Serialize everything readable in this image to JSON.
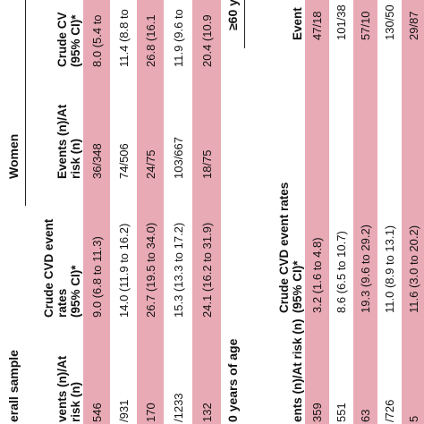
{
  "sections": [
    {
      "title": "erall sample",
      "group": "Women",
      "headers": [
        "vents (n)/At\nrisk (n)",
        "Crude CVD event\nrates\n(95% CI)*",
        "Events (n)/At\nrisk (n)",
        "Crude CV\n(95% CI)*"
      ],
      "rows": [
        [
          "546",
          "9.0 (6.8 to 11.3)",
          "36/348",
          "8.0 (5.4 to"
        ],
        [
          "/931",
          "14.0 (11.9 to 16.2)",
          "74/506",
          "11.4 (8.8 to"
        ],
        [
          "170",
          "26.7 (19.5 to 34.0)",
          "24/75",
          "26.8 (16.1"
        ],
        [
          "/1233",
          "15.3 (13.3 to 17.2)",
          "103/667",
          "11.9 (9.6 to"
        ],
        [
          "132",
          "24.1 (16.2 to 31.9)",
          "18/75",
          "20.4 (10.9"
        ]
      ]
    },
    {
      "title": "0 years of age",
      "group": "≥60 y",
      "headers": [
        "ents (n)/At risk (n)",
        "Crude CVD event rates\n(95% CI)*",
        "Event"
      ],
      "rows": [
        [
          "359",
          "3.2 (1.6 to 4.8)",
          "47/18"
        ],
        [
          "551",
          "8.6 (6.5 to 10.7)",
          "101/38"
        ],
        [
          "63",
          "19.3 (9.6 to 29.2)",
          "57/10"
        ],
        [
          "/726",
          "11.0 (8.9 to 13.1)",
          "130/50"
        ],
        [
          "5",
          "11.6 (3.0 to 20.2)",
          "29/87"
        ]
      ]
    }
  ]
}
